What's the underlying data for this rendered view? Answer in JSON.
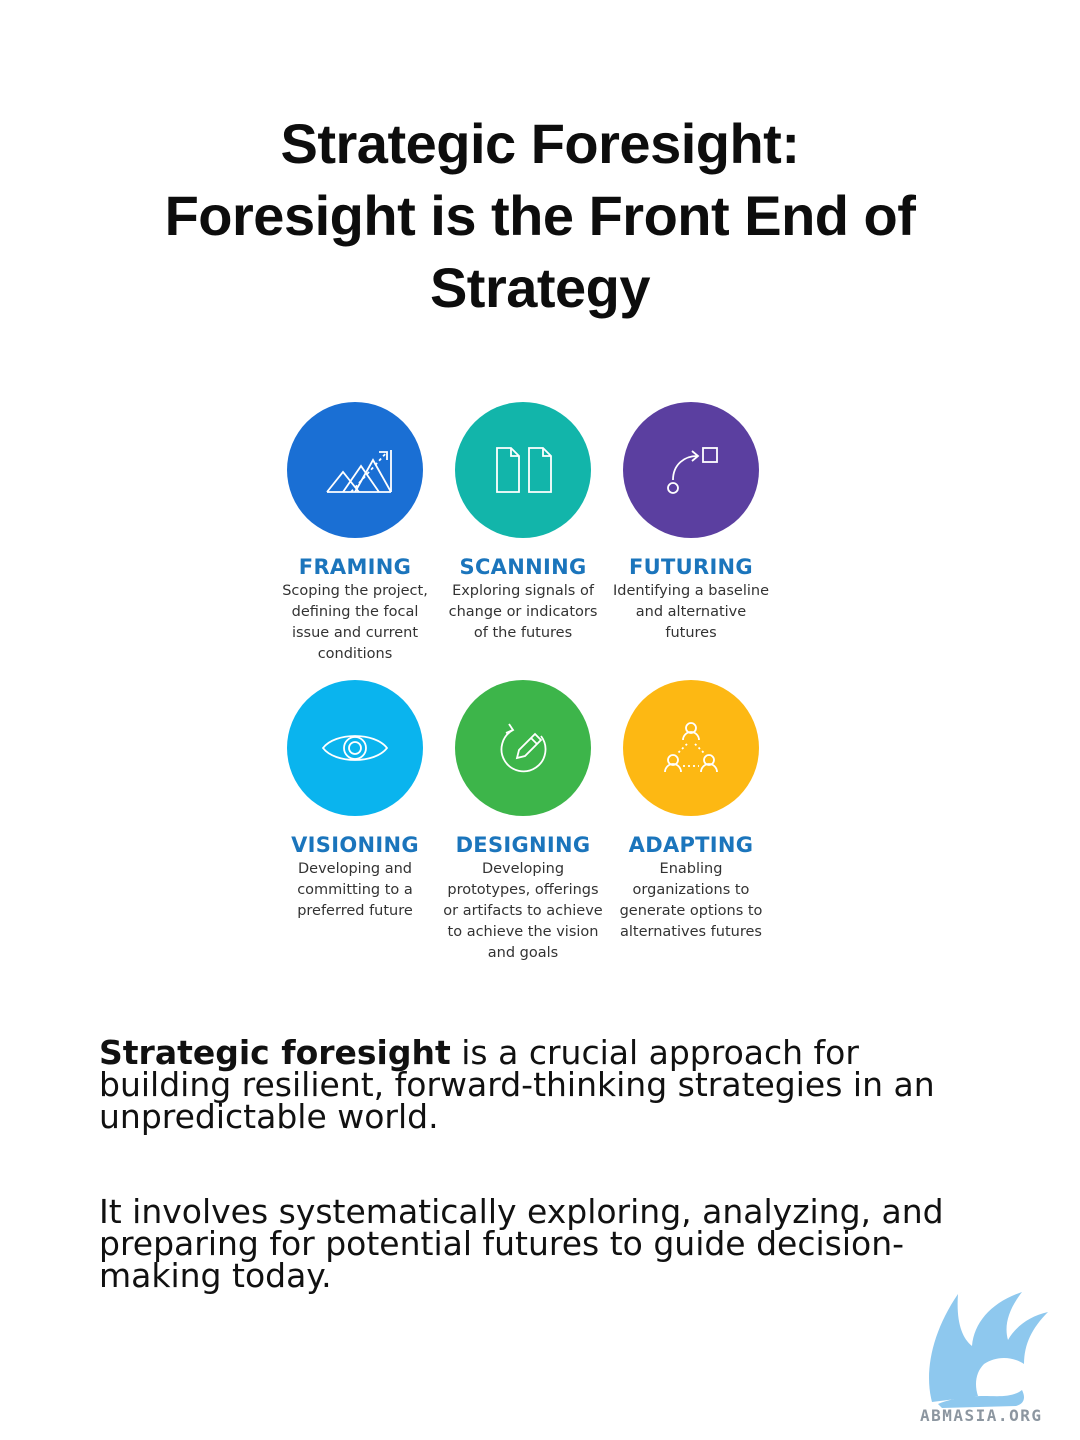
{
  "title": {
    "line1": "Strategic Foresight:",
    "line2": "Foresight is the Front End of",
    "line3": "Strategy"
  },
  "cards": [
    {
      "title": "FRAMING",
      "desc": "Scoping the project,\ndefining the focal\nissue and current\nconditions",
      "color": "#1a6fd4",
      "icon": "mountain-chart-icon"
    },
    {
      "title": "SCANNING",
      "desc": "Exploring signals of\nchange or indicators\nof the futures",
      "color": "#12b5aa",
      "icon": "documents-icon"
    },
    {
      "title": "FUTURING",
      "desc": "Identifying a baseline\nand alternative\nfutures",
      "color": "#5b3fa0",
      "icon": "path-arrow-icon"
    },
    {
      "title": "VISIONING",
      "desc": "Developing and\ncommitting to a\npreferred future",
      "color": "#0ab4ee",
      "icon": "eye-icon"
    },
    {
      "title": "DESIGNING",
      "desc": "Developing\nprototypes, offerings\nor artifacts to achieve\nto achieve the vision\nand goals",
      "color": "#3db54a",
      "icon": "pencil-cycle-icon"
    },
    {
      "title": "ADAPTING",
      "desc": "Enabling\norganizations to\ngenerate options to\nalternatives futures",
      "color": "#fdb813",
      "icon": "network-people-icon"
    }
  ],
  "body": {
    "p1_bold": "Strategic foresight",
    "p1_rest": " is a crucial approach for building resilient, forward-thinking strategies in an unpredictable world.",
    "p2": "It involves systematically exploring, analyzing, and preparing for potential futures to guide decision-making today."
  },
  "logo": {
    "text": "ABMASIA.ORG",
    "color": "#8ec8ee"
  }
}
